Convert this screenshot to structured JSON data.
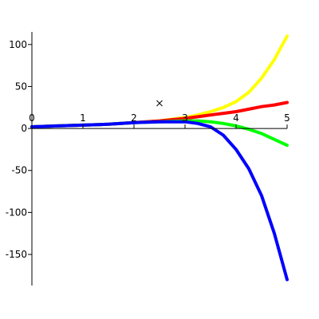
{
  "chart_data": {
    "type": "line",
    "x": [
      0,
      0.5,
      1,
      1.5,
      2,
      2.5,
      3,
      3.25,
      3.5,
      3.75,
      4,
      4.25,
      4.5,
      4.75,
      5
    ],
    "series": [
      {
        "color": "#ffff00",
        "values": [
          2,
          3,
          4,
          5,
          7,
          9,
          13,
          16,
          20,
          25,
          32,
          43,
          60,
          82,
          110
        ]
      },
      {
        "color": "#ff0000",
        "values": [
          2,
          3,
          4,
          5,
          7,
          9,
          12,
          14,
          16,
          18,
          20,
          23,
          26,
          28,
          31
        ]
      },
      {
        "color": "#00ff00",
        "values": [
          2,
          3,
          4,
          5,
          7,
          8,
          9,
          9,
          8,
          6,
          3,
          -1,
          -6,
          -13,
          -20
        ]
      },
      {
        "color": "#0000ff",
        "values": [
          2,
          3,
          4,
          5,
          7,
          8,
          8,
          6,
          2,
          -8,
          -25,
          -48,
          -80,
          -125,
          -180
        ]
      }
    ],
    "markers": {
      "x": [
        2.5
      ],
      "y": [
        30
      ],
      "color": "#000000"
    },
    "xlim": [
      0,
      5
    ],
    "ylim": [
      -187,
      115
    ],
    "xticks": [
      0,
      1,
      2,
      3,
      4,
      5
    ],
    "yticks": [
      -150,
      -100,
      -50,
      0,
      50,
      100
    ]
  }
}
